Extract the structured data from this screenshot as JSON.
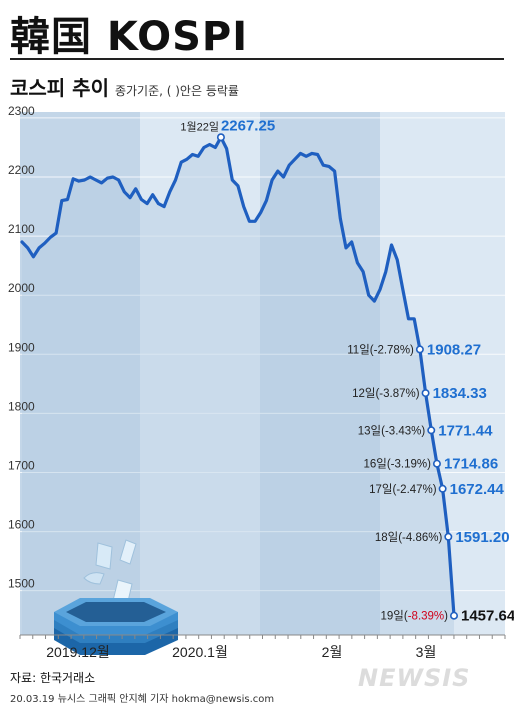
{
  "title": "韓国 KOSPI",
  "subtitle": "코스피 추이",
  "subtitle_note": "종가기준, ( )안은 등락률",
  "source": "자료: 한국거래소",
  "credit": "20.03.19 뉴시스 그래픽 안지혜 기자 hokma@newsis.com",
  "watermark": "NEWSIS",
  "colors": {
    "line": "#1f5fc0",
    "label_blue": "#1f6fd0",
    "negative_red": "#d0021b",
    "band_light": "#dce8f3",
    "band_dark": "#c3d6e8",
    "area_fill": "#b3cde3"
  },
  "icon": "sinking-box-icon",
  "chart_data": {
    "type": "line",
    "ylim": [
      1425,
      2310
    ],
    "yticks": [
      1500,
      1600,
      1700,
      1800,
      1900,
      2000,
      2100,
      2200,
      2300
    ],
    "month_labels": [
      "2019.12월",
      "2020.1월",
      "2월",
      "3월"
    ],
    "series": [
      {
        "values": [
          2090,
          2080,
          2065,
          2080,
          2088,
          2098,
          2105,
          2160,
          2162,
          2197,
          2193,
          2195,
          2200,
          2195,
          2190,
          2198,
          2200,
          2195,
          2175,
          2165,
          2180,
          2162,
          2155,
          2170,
          2155,
          2150,
          2175,
          2195,
          2225,
          2230,
          2238,
          2235,
          2250,
          2255,
          2250,
          2267.25,
          2248,
          2195,
          2185,
          2150,
          2125,
          2125,
          2140,
          2160,
          2195,
          2210,
          2200,
          2220,
          2230,
          2240,
          2235,
          2240,
          2238,
          2220,
          2218,
          2210,
          2130,
          2080,
          2090,
          2055,
          2040,
          2000,
          1990,
          2010,
          2040,
          2085,
          2060,
          2010,
          1960,
          1960,
          1908.27,
          1834.33,
          1771.44,
          1714.86,
          1672.44,
          1591.2,
          1457.64
        ]
      }
    ],
    "annotations": [
      {
        "label": "1월22일",
        "value_text": "2267.25",
        "value": 2267.25,
        "pct": ""
      },
      {
        "label": "11일",
        "pct": "-2.78%",
        "value_text": "1908.27",
        "value": 1908.27
      },
      {
        "label": "12일",
        "pct": "-3.87%",
        "value_text": "1834.33",
        "value": 1834.33
      },
      {
        "label": "13일",
        "pct": "-3.43%",
        "value_text": "1771.44",
        "value": 1771.44
      },
      {
        "label": "16일",
        "pct": "-3.19%",
        "value_text": "1714.86",
        "value": 1714.86
      },
      {
        "label": "17일",
        "pct": "-2.47%",
        "value_text": "1672.44",
        "value": 1672.44
      },
      {
        "label": "18일",
        "pct": "-4.86%",
        "value_text": "1591.20",
        "value": 1591.2
      },
      {
        "label": "19일",
        "pct": "-8.39%",
        "value_text": "1457.64",
        "value": 1457.64
      }
    ]
  }
}
